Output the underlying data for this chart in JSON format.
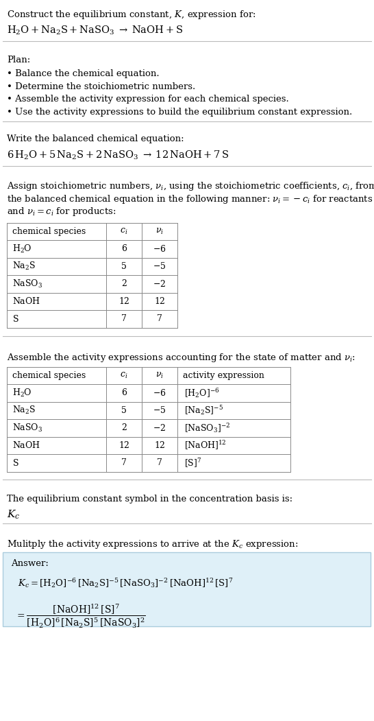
{
  "title_line1": "Construct the equilibrium constant, $K$, expression for:",
  "title_line2": "$\\mathrm{H_2O + Na_2S + NaSO_3 \\;\\rightarrow\\; NaOH + S}$",
  "plan_header": "Plan:",
  "plan_items": [
    "• Balance the chemical equation.",
    "• Determine the stoichiometric numbers.",
    "• Assemble the activity expression for each chemical species.",
    "• Use the activity expressions to build the equilibrium constant expression."
  ],
  "balanced_header": "Write the balanced chemical equation:",
  "balanced_eq": "$\\mathrm{6\\,H_2O + 5\\,Na_2S + 2\\,NaSO_3 \\;\\rightarrow\\; 12\\,NaOH + 7\\,S}$",
  "stoich_lines": [
    "Assign stoichiometric numbers, $\\nu_i$, using the stoichiometric coefficients, $c_i$, from",
    "the balanced chemical equation in the following manner: $\\nu_i = -c_i$ for reactants",
    "and $\\nu_i = c_i$ for products:"
  ],
  "table1_headers": [
    "chemical species",
    "$c_i$",
    "$\\nu_i$"
  ],
  "table1_rows": [
    [
      "$\\mathrm{H_2O}$",
      "6",
      "$-6$"
    ],
    [
      "$\\mathrm{Na_2S}$",
      "5",
      "$-5$"
    ],
    [
      "$\\mathrm{NaSO_3}$",
      "2",
      "$-2$"
    ],
    [
      "$\\mathrm{NaOH}$",
      "12",
      "12"
    ],
    [
      "$\\mathrm{S}$",
      "7",
      "7"
    ]
  ],
  "activity_header": "Assemble the activity expressions accounting for the state of matter and $\\nu_i$:",
  "table2_headers": [
    "chemical species",
    "$c_i$",
    "$\\nu_i$",
    "activity expression"
  ],
  "table2_rows": [
    [
      "$\\mathrm{H_2O}$",
      "6",
      "$-6$",
      "$[\\mathrm{H_2O}]^{-6}$"
    ],
    [
      "$\\mathrm{Na_2S}$",
      "5",
      "$-5$",
      "$[\\mathrm{Na_2S}]^{-5}$"
    ],
    [
      "$\\mathrm{NaSO_3}$",
      "2",
      "$-2$",
      "$[\\mathrm{NaSO_3}]^{-2}$"
    ],
    [
      "$\\mathrm{NaOH}$",
      "12",
      "12",
      "$[\\mathrm{NaOH}]^{12}$"
    ],
    [
      "$\\mathrm{S}$",
      "7",
      "7",
      "$[\\mathrm{S}]^{7}$"
    ]
  ],
  "kc_header": "The equilibrium constant symbol in the concentration basis is:",
  "kc_symbol": "$K_c$",
  "multiply_header": "Mulitply the activity expressions to arrive at the $K_c$ expression:",
  "answer_label": "Answer:",
  "answer_line1": "$K_c = [\\mathrm{H_2O}]^{-6}\\,[\\mathrm{Na_2S}]^{-5}\\,[\\mathrm{NaSO_3}]^{-2}\\,[\\mathrm{NaOH}]^{12}\\,[\\mathrm{S}]^{7}$",
  "answer_eq_lhs": "$= \\dfrac{[\\mathrm{NaOH}]^{12}\\,[\\mathrm{S}]^{7}}{[\\mathrm{H_2O}]^{6}\\,[\\mathrm{Na_2S}]^{5}\\,[\\mathrm{NaSO_3}]^{2}}$",
  "bg_color": "#ffffff",
  "text_color": "#000000",
  "answer_box_bg": "#dff0f8",
  "answer_box_border": "#aaccdd",
  "fontsize": 9.5,
  "figwidth": 5.46,
  "figheight": 10.51,
  "dpi": 100
}
